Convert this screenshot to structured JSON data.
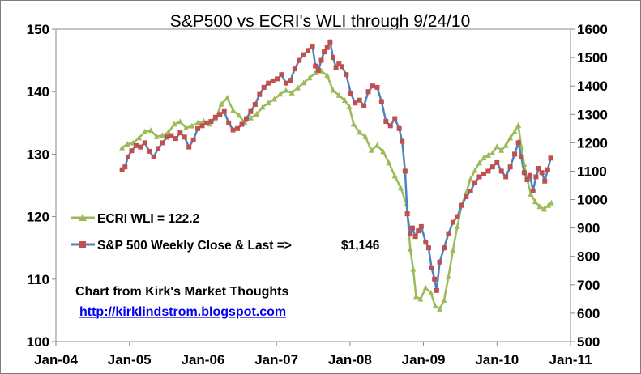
{
  "chart_data": {
    "type": "line",
    "title": "S&P500 vs ECRI's WLI through 9/24/10",
    "x_ticks": [
      "Jan-04",
      "Jan-05",
      "Jan-06",
      "Jan-07",
      "Jan-08",
      "Jan-09",
      "Jan-10",
      "Jan-11"
    ],
    "xlim": [
      2004.0,
      2011.0
    ],
    "y_left_ticks": [
      "100",
      "110",
      "120",
      "130",
      "140",
      "150"
    ],
    "ylim_left": [
      100,
      150
    ],
    "y_right_ticks": [
      "500",
      "600",
      "700",
      "800",
      "900",
      "1000",
      "1100",
      "1200",
      "1300",
      "1400",
      "1500",
      "1600"
    ],
    "ylim_right": [
      500,
      1600
    ],
    "series": [
      {
        "name": "ECRI WLI",
        "legend_label": "ECRI WLI = 122.2",
        "axis": "left",
        "color": "#9bbb59",
        "marker": "triangle",
        "points": [
          [
            2004.9,
            131.0
          ],
          [
            2004.97,
            131.6
          ],
          [
            2005.05,
            131.8
          ],
          [
            2005.13,
            132.6
          ],
          [
            2005.21,
            133.6
          ],
          [
            2005.29,
            133.8
          ],
          [
            2005.37,
            132.8
          ],
          [
            2005.45,
            133.0
          ],
          [
            2005.53,
            133.5
          ],
          [
            2005.61,
            134.8
          ],
          [
            2005.69,
            135.2
          ],
          [
            2005.77,
            134.2
          ],
          [
            2005.85,
            134.5
          ],
          [
            2005.93,
            135.0
          ],
          [
            2006.01,
            135.3
          ],
          [
            2006.09,
            134.8
          ],
          [
            2006.17,
            135.6
          ],
          [
            2006.25,
            138.0
          ],
          [
            2006.33,
            139.0
          ],
          [
            2006.41,
            137.0
          ],
          [
            2006.49,
            136.2
          ],
          [
            2006.57,
            135.0
          ],
          [
            2006.65,
            135.8
          ],
          [
            2006.73,
            136.4
          ],
          [
            2006.81,
            137.5
          ],
          [
            2006.89,
            138.2
          ],
          [
            2006.97,
            138.8
          ],
          [
            2007.05,
            139.6
          ],
          [
            2007.13,
            140.2
          ],
          [
            2007.21,
            139.8
          ],
          [
            2007.29,
            140.6
          ],
          [
            2007.37,
            141.4
          ],
          [
            2007.45,
            142.2
          ],
          [
            2007.53,
            143.0
          ],
          [
            2007.61,
            143.3
          ],
          [
            2007.69,
            142.6
          ],
          [
            2007.77,
            140.2
          ],
          [
            2007.85,
            139.4
          ],
          [
            2007.93,
            138.6
          ],
          [
            2007.99,
            137.6
          ],
          [
            2008.05,
            134.8
          ],
          [
            2008.13,
            133.5
          ],
          [
            2008.21,
            132.8
          ],
          [
            2008.29,
            130.6
          ],
          [
            2008.37,
            131.4
          ],
          [
            2008.45,
            130.4
          ],
          [
            2008.53,
            128.6
          ],
          [
            2008.61,
            126.5
          ],
          [
            2008.69,
            124.6
          ],
          [
            2008.77,
            122.0
          ],
          [
            2008.82,
            114.8
          ],
          [
            2008.86,
            111.6
          ],
          [
            2008.9,
            107.2
          ],
          [
            2008.96,
            106.8
          ],
          [
            2009.03,
            108.6
          ],
          [
            2009.1,
            107.8
          ],
          [
            2009.16,
            105.7
          ],
          [
            2009.22,
            105.2
          ],
          [
            2009.28,
            106.6
          ],
          [
            2009.34,
            110.4
          ],
          [
            2009.4,
            114.6
          ],
          [
            2009.46,
            118.4
          ],
          [
            2009.52,
            121.8
          ],
          [
            2009.58,
            123.8
          ],
          [
            2009.64,
            126.0
          ],
          [
            2009.7,
            127.4
          ],
          [
            2009.76,
            128.6
          ],
          [
            2009.82,
            129.4
          ],
          [
            2009.88,
            129.8
          ],
          [
            2009.94,
            130.2
          ],
          [
            2010.0,
            131.2
          ],
          [
            2010.06,
            130.6
          ],
          [
            2010.12,
            131.4
          ],
          [
            2010.18,
            132.6
          ],
          [
            2010.24,
            133.6
          ],
          [
            2010.29,
            134.6
          ],
          [
            2010.33,
            131.2
          ],
          [
            2010.37,
            128.4
          ],
          [
            2010.41,
            126.0
          ],
          [
            2010.46,
            123.6
          ],
          [
            2010.52,
            122.4
          ],
          [
            2010.58,
            121.6
          ],
          [
            2010.64,
            121.2
          ],
          [
            2010.7,
            121.8
          ],
          [
            2010.74,
            122.2
          ]
        ]
      },
      {
        "name": "S&P 500",
        "legend_label": "S&P 500 Weekly Close & Last =>",
        "last_value_label": "$1,146",
        "axis": "right",
        "color": "#4f81bd",
        "marker_color": "#c0504d",
        "marker": "square",
        "points": [
          [
            2004.9,
            1105
          ],
          [
            2004.94,
            1115
          ],
          [
            2004.98,
            1150
          ],
          [
            2005.03,
            1172
          ],
          [
            2005.09,
            1190
          ],
          [
            2005.15,
            1185
          ],
          [
            2005.21,
            1200
          ],
          [
            2005.27,
            1170
          ],
          [
            2005.33,
            1150
          ],
          [
            2005.39,
            1180
          ],
          [
            2005.45,
            1200
          ],
          [
            2005.51,
            1220
          ],
          [
            2005.57,
            1225
          ],
          [
            2005.63,
            1215
          ],
          [
            2005.69,
            1235
          ],
          [
            2005.75,
            1220
          ],
          [
            2005.81,
            1185
          ],
          [
            2005.87,
            1210
          ],
          [
            2005.93,
            1250
          ],
          [
            2005.99,
            1260
          ],
          [
            2006.05,
            1270
          ],
          [
            2006.11,
            1275
          ],
          [
            2006.17,
            1290
          ],
          [
            2006.23,
            1300
          ],
          [
            2006.29,
            1310
          ],
          [
            2006.35,
            1270
          ],
          [
            2006.41,
            1245
          ],
          [
            2006.47,
            1250
          ],
          [
            2006.53,
            1265
          ],
          [
            2006.59,
            1285
          ],
          [
            2006.65,
            1310
          ],
          [
            2006.71,
            1335
          ],
          [
            2006.77,
            1370
          ],
          [
            2006.83,
            1395
          ],
          [
            2006.89,
            1410
          ],
          [
            2006.95,
            1418
          ],
          [
            2007.01,
            1425
          ],
          [
            2007.07,
            1440
          ],
          [
            2007.13,
            1410
          ],
          [
            2007.19,
            1420
          ],
          [
            2007.25,
            1460
          ],
          [
            2007.31,
            1490
          ],
          [
            2007.37,
            1510
          ],
          [
            2007.43,
            1525
          ],
          [
            2007.49,
            1540
          ],
          [
            2007.53,
            1470
          ],
          [
            2007.57,
            1455
          ],
          [
            2007.61,
            1490
          ],
          [
            2007.65,
            1520
          ],
          [
            2007.69,
            1535
          ],
          [
            2007.73,
            1555
          ],
          [
            2007.77,
            1500
          ],
          [
            2007.81,
            1465
          ],
          [
            2007.85,
            1480
          ],
          [
            2007.89,
            1468
          ],
          [
            2007.95,
            1440
          ],
          [
            2008.01,
            1375
          ],
          [
            2008.07,
            1340
          ],
          [
            2008.13,
            1350
          ],
          [
            2008.19,
            1330
          ],
          [
            2008.25,
            1380
          ],
          [
            2008.31,
            1400
          ],
          [
            2008.37,
            1395
          ],
          [
            2008.43,
            1345
          ],
          [
            2008.49,
            1275
          ],
          [
            2008.55,
            1260
          ],
          [
            2008.61,
            1285
          ],
          [
            2008.67,
            1250
          ],
          [
            2008.71,
            1205
          ],
          [
            2008.75,
            1100
          ],
          [
            2008.78,
            950
          ],
          [
            2008.82,
            880
          ],
          [
            2008.85,
            900
          ],
          [
            2008.89,
            870
          ],
          [
            2008.93,
            890
          ],
          [
            2008.97,
            905
          ],
          [
            2009.03,
            850
          ],
          [
            2009.07,
            830
          ],
          [
            2009.11,
            760
          ],
          [
            2009.15,
            720
          ],
          [
            2009.18,
            680
          ],
          [
            2009.22,
            780
          ],
          [
            2009.28,
            830
          ],
          [
            2009.34,
            880
          ],
          [
            2009.4,
            920
          ],
          [
            2009.46,
            940
          ],
          [
            2009.52,
            980
          ],
          [
            2009.58,
            1010
          ],
          [
            2009.64,
            1030
          ],
          [
            2009.7,
            1060
          ],
          [
            2009.76,
            1080
          ],
          [
            2009.82,
            1090
          ],
          [
            2009.88,
            1100
          ],
          [
            2009.94,
            1115
          ],
          [
            2010.0,
            1130
          ],
          [
            2010.06,
            1100
          ],
          [
            2010.12,
            1080
          ],
          [
            2010.18,
            1115
          ],
          [
            2010.24,
            1160
          ],
          [
            2010.29,
            1200
          ],
          [
            2010.33,
            1150
          ],
          [
            2010.37,
            1095
          ],
          [
            2010.41,
            1070
          ],
          [
            2010.45,
            1085
          ],
          [
            2010.49,
            1030
          ],
          [
            2010.53,
            1080
          ],
          [
            2010.57,
            1110
          ],
          [
            2010.61,
            1095
          ],
          [
            2010.65,
            1065
          ],
          [
            2010.69,
            1105
          ],
          [
            2010.73,
            1146
          ]
        ]
      }
    ],
    "annotations": [
      "Chart from Kirk's Market Thoughts",
      "http://kirklindstrom.blogspot.com"
    ]
  }
}
